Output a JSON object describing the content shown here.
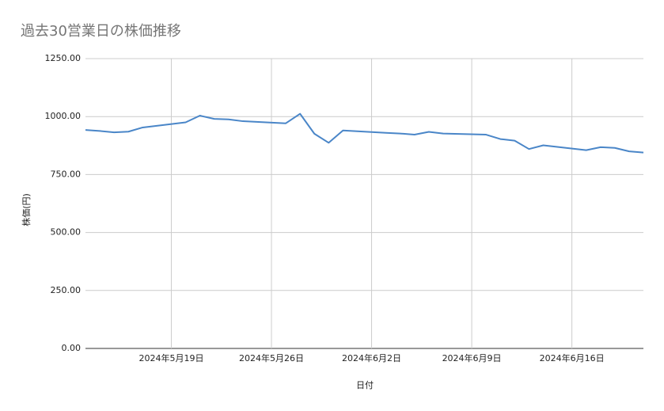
{
  "chart_data": {
    "type": "line",
    "title": "過去30営業日の株価推移",
    "x_label": "日付",
    "y_label": "株価(円)",
    "x": [
      "2024-05-13",
      "2024-05-14",
      "2024-05-15",
      "2024-05-16",
      "2024-05-17",
      "2024-05-20",
      "2024-05-21",
      "2024-05-22",
      "2024-05-23",
      "2024-05-24",
      "2024-05-27",
      "2024-05-28",
      "2024-05-29",
      "2024-05-30",
      "2024-05-31",
      "2024-06-03",
      "2024-06-04",
      "2024-06-05",
      "2024-06-06",
      "2024-06-07",
      "2024-06-10",
      "2024-06-11",
      "2024-06-12",
      "2024-06-13",
      "2024-06-14",
      "2024-06-17",
      "2024-06-18",
      "2024-06-19",
      "2024-06-20",
      "2024-06-21"
    ],
    "series": [
      {
        "name": "株価(円)",
        "color": "#4a86c8",
        "values": [
          942,
          938,
          932,
          935,
          953,
          975,
          1004,
          990,
          988,
          980,
          971,
          1012,
          926,
          887,
          940,
          930,
          927,
          922,
          934,
          927,
          922,
          903,
          896,
          860,
          876,
          855,
          868,
          865,
          850,
          845
        ]
      }
    ],
    "xlim": [
      "2024-05-13",
      "2024-06-21"
    ],
    "xticks": [
      {
        "value": "2024-05-19",
        "label": "2024年5月19日"
      },
      {
        "value": "2024-05-26",
        "label": "2024年5月26日"
      },
      {
        "value": "2024-06-02",
        "label": "2024年6月2日"
      },
      {
        "value": "2024-06-09",
        "label": "2024年6月9日"
      },
      {
        "value": "2024-06-16",
        "label": "2024年6月16日"
      }
    ],
    "ylim": [
      0,
      1250
    ],
    "yticks": [
      {
        "value": 0,
        "label": "0.00"
      },
      {
        "value": 250,
        "label": "250.00"
      },
      {
        "value": 500,
        "label": "500.00"
      },
      {
        "value": 750,
        "label": "750.00"
      },
      {
        "value": 1000,
        "label": "1000.00"
      },
      {
        "value": 1250,
        "label": "1250.00"
      }
    ],
    "grid": true
  }
}
